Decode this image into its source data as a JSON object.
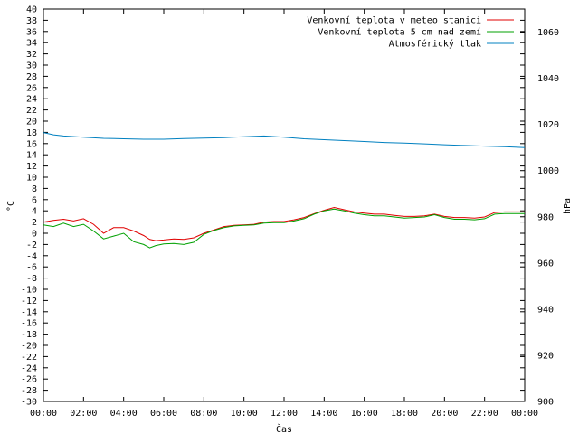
{
  "chart_data": {
    "type": "line",
    "xlabel": "Čas",
    "ylabel_left": "°C",
    "ylabel_right": "hPa",
    "x_ticks": [
      "00:00",
      "02:00",
      "04:00",
      "06:00",
      "08:00",
      "10:00",
      "12:00",
      "14:00",
      "16:00",
      "18:00",
      "20:00",
      "22:00",
      "00:00"
    ],
    "x_range_hours": [
      0,
      24
    ],
    "y_left_range": [
      -30,
      40
    ],
    "y_left_step": 2,
    "y_right_range": [
      900,
      1070
    ],
    "y_right_ticks": [
      900,
      920,
      940,
      960,
      980,
      1000,
      1020,
      1040,
      1060
    ],
    "grid": false,
    "legend_position": "top-right",
    "series": [
      {
        "name": "Venkovní teplota v meteo stanici",
        "color": "#e00000",
        "axis": "left",
        "x": [
          0,
          0.5,
          1,
          1.5,
          2,
          2.5,
          3,
          3.5,
          4,
          4.5,
          5,
          5.3,
          5.6,
          6,
          6.5,
          7,
          7.5,
          8,
          8.5,
          9,
          9.5,
          10,
          10.5,
          11,
          11.5,
          12,
          12.5,
          13,
          13.5,
          14,
          14.5,
          15,
          15.5,
          16,
          16.5,
          17,
          17.5,
          18,
          18.5,
          19,
          19.5,
          20,
          20.5,
          21,
          21.5,
          22,
          22.5,
          23,
          23.5,
          24
        ],
        "values": [
          2.0,
          2.3,
          2.5,
          2.2,
          2.6,
          1.6,
          0.0,
          1.0,
          1.0,
          0.4,
          -0.4,
          -1.1,
          -1.3,
          -1.2,
          -1.0,
          -1.1,
          -0.8,
          0.0,
          0.6,
          1.2,
          1.4,
          1.5,
          1.6,
          2.0,
          2.1,
          2.1,
          2.4,
          2.8,
          3.5,
          4.1,
          4.6,
          4.2,
          3.8,
          3.6,
          3.4,
          3.4,
          3.2,
          3.0,
          3.0,
          3.1,
          3.4,
          3.0,
          2.8,
          2.8,
          2.7,
          2.9,
          3.7,
          3.8,
          3.8,
          3.8
        ]
      },
      {
        "name": "Venkovní teplota 5 cm nad zemí",
        "color": "#00a000",
        "axis": "left",
        "x": [
          0,
          0.5,
          1,
          1.5,
          2,
          2.5,
          3,
          3.5,
          4,
          4.5,
          5,
          5.3,
          5.6,
          6,
          6.5,
          7,
          7.5,
          8,
          8.5,
          9,
          9.5,
          10,
          10.5,
          11,
          11.5,
          12,
          12.5,
          13,
          13.5,
          14,
          14.5,
          15,
          15.5,
          16,
          16.5,
          17,
          17.5,
          18,
          18.5,
          19,
          19.5,
          20,
          20.5,
          21,
          21.5,
          22,
          22.5,
          23,
          23.5,
          24
        ],
        "values": [
          1.5,
          1.2,
          1.8,
          1.2,
          1.6,
          0.4,
          -1.0,
          -0.5,
          0.0,
          -1.5,
          -2.0,
          -2.6,
          -2.2,
          -1.9,
          -1.8,
          -2.0,
          -1.6,
          -0.2,
          0.5,
          1.0,
          1.3,
          1.4,
          1.5,
          1.8,
          1.9,
          1.9,
          2.2,
          2.6,
          3.4,
          4.0,
          4.3,
          4.0,
          3.6,
          3.3,
          3.1,
          3.1,
          2.9,
          2.7,
          2.8,
          2.9,
          3.3,
          2.8,
          2.5,
          2.5,
          2.4,
          2.6,
          3.4,
          3.5,
          3.5,
          3.5
        ]
      },
      {
        "name": "Atmosférický tlak",
        "color": "#0080c0",
        "axis": "right",
        "x": [
          0,
          0.5,
          1,
          2,
          3,
          4,
          5,
          6,
          7,
          8,
          9,
          10,
          11,
          12,
          13,
          14,
          15,
          16,
          17,
          18,
          19,
          20,
          21,
          22,
          23,
          24
        ],
        "values": [
          1016.5,
          1015.5,
          1015.0,
          1014.5,
          1014.0,
          1013.8,
          1013.6,
          1013.6,
          1013.9,
          1014.1,
          1014.3,
          1014.7,
          1015.0,
          1014.5,
          1013.8,
          1013.4,
          1013.0,
          1012.6,
          1012.2,
          1011.9,
          1011.6,
          1011.2,
          1010.9,
          1010.6,
          1010.4,
          1010.0
        ]
      }
    ]
  }
}
